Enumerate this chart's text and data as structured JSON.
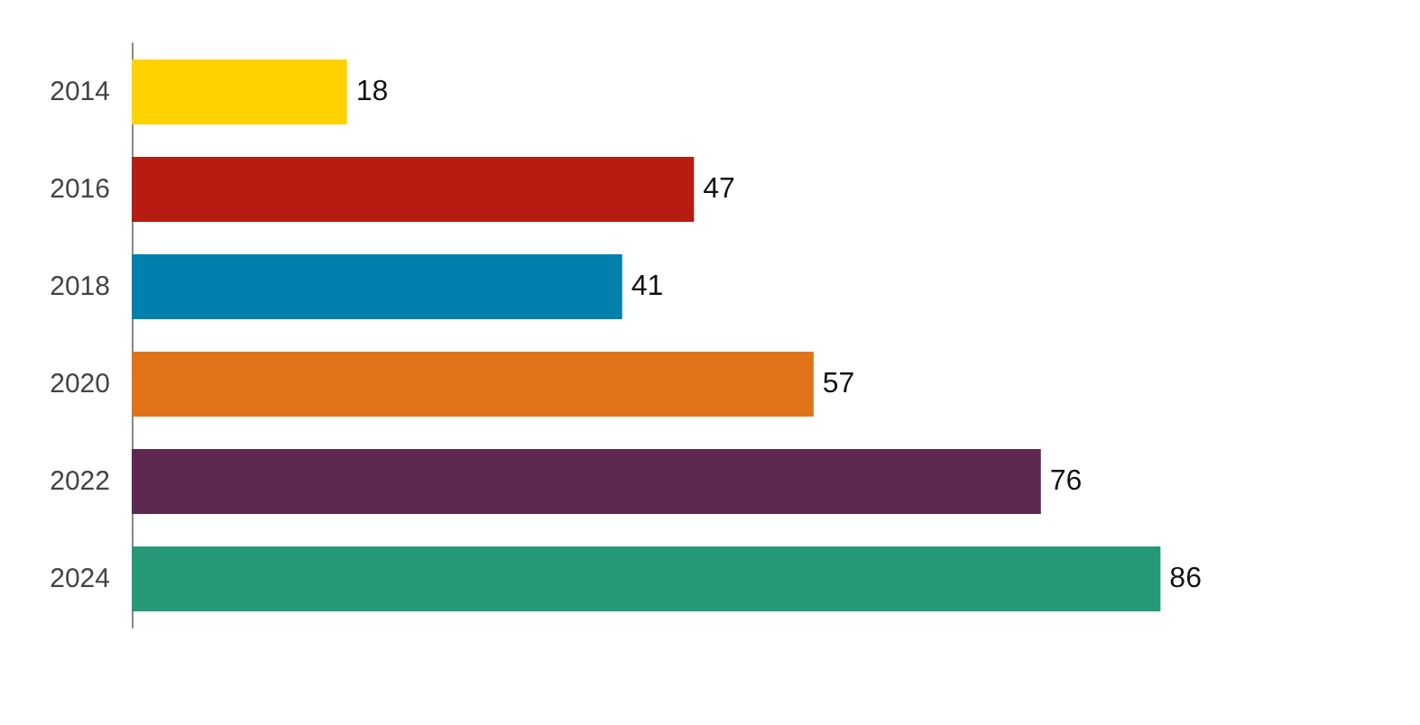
{
  "chart_data": {
    "type": "bar",
    "orientation": "horizontal",
    "categories": [
      "2014",
      "2016",
      "2018",
      "2020",
      "2022",
      "2024"
    ],
    "values": [
      18,
      47,
      41,
      57,
      76,
      86
    ],
    "colors": [
      "#ffd200",
      "#b71c12",
      "#0080ad",
      "#e07319",
      "#5e2950",
      "#269a78"
    ],
    "data_labels": true
  }
}
